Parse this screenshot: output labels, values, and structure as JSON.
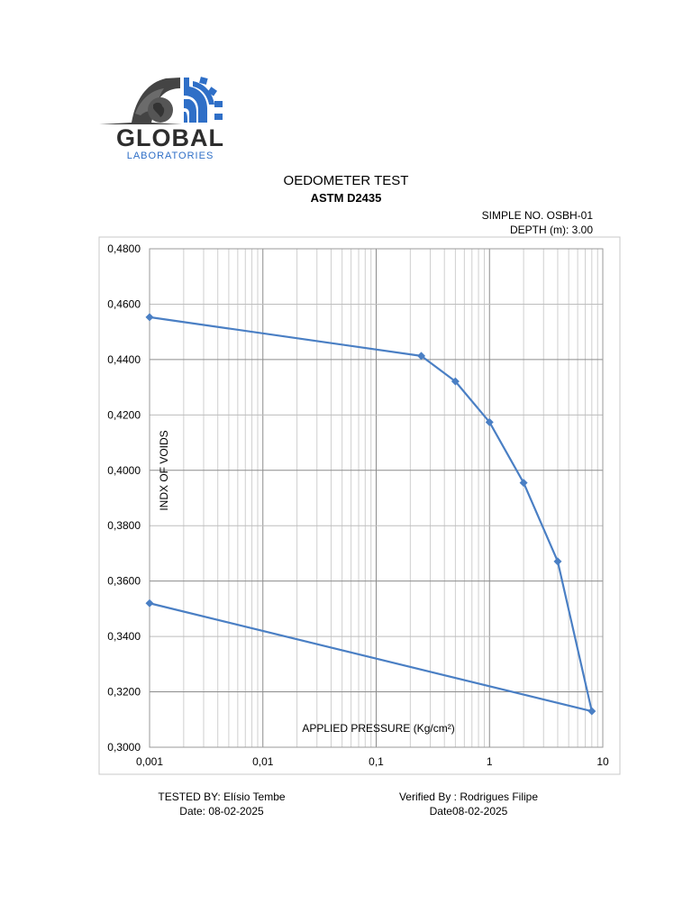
{
  "logo": {
    "name": "GLOBAL",
    "sub": "LABORATORIES",
    "colors": {
      "dark": "#444444",
      "blue": "#2f6fc7"
    }
  },
  "header": {
    "title": "OEDOMETER TEST",
    "standard": "ASTM D2435",
    "sample_no": "SIMPLE NO. OSBH-01",
    "depth": "DEPTH (m): 3.00"
  },
  "chart_data": {
    "type": "scatter",
    "title": "",
    "xlabel": "APPLIED PRESSURE (Kg/cm²)",
    "ylabel": "INDX OF VOIDS",
    "x_scale": "log",
    "xlim": [
      0.001,
      10
    ],
    "ylim": [
      0.3,
      0.48
    ],
    "x_ticks": [
      "0,001",
      "0,01",
      "0,1",
      "1",
      "10"
    ],
    "y_ticks": [
      "0,4800",
      "0,4600",
      "0,4400",
      "0,4200",
      "0,4000",
      "0,3800",
      "0,3600",
      "0,3400",
      "0,3200",
      "0,3000"
    ],
    "grid": true,
    "series": [
      {
        "color": "#4a7fc4",
        "marker": "diamond",
        "points": [
          [
            0.001,
            0.4553
          ],
          [
            0.25,
            0.4413
          ],
          [
            0.5,
            0.4321
          ],
          [
            1,
            0.4174
          ],
          [
            2,
            0.3955
          ],
          [
            4,
            0.3671
          ],
          [
            8,
            0.313
          ],
          [
            0.001,
            0.352
          ]
        ]
      }
    ]
  },
  "footer": {
    "tested_by": "TESTED BY: Elísio Tembe",
    "tested_date": "Date: 08-02-2025",
    "verified_by": "Verified By : Rodrigues Filipe",
    "verified_date": "Date08-02-2025"
  }
}
